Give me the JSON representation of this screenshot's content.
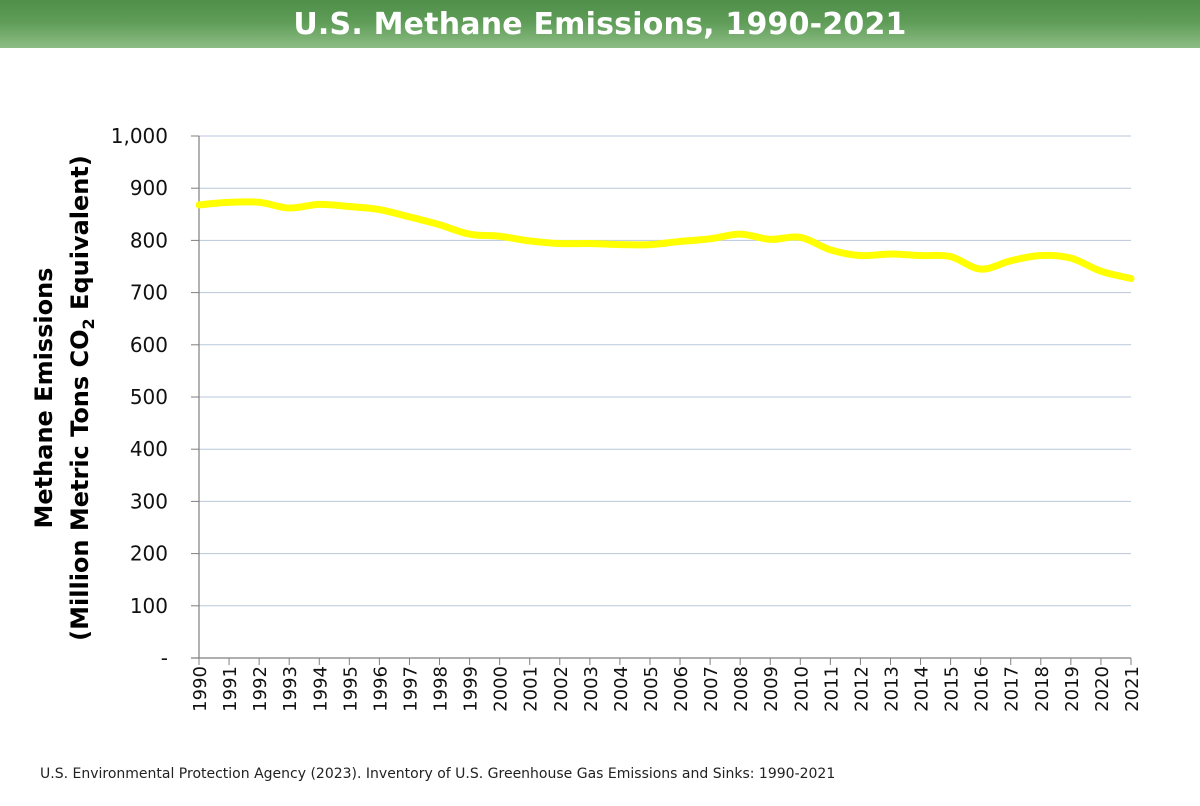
{
  "title": "U.S. Methane Emissions, 1990-2021",
  "source": "U.S. Environmental Protection Agency (2023). Inventory of U.S. Greenhouse Gas Emissions and Sinks: 1990-2021",
  "chart_data": {
    "type": "line",
    "title": "U.S. Methane Emissions, 1990-2021",
    "ylabel_line1": "Methane Emissions",
    "ylabel_line2_pre": "(Million Metric Tons CO",
    "ylabel_line2_sub": "2",
    "ylabel_line2_post": " Equivalent)",
    "xlabel": "",
    "ylim": [
      0,
      1000
    ],
    "yticks": [
      "-",
      "100",
      "200",
      "300",
      "400",
      "500",
      "600",
      "700",
      "800",
      "900",
      "1,000"
    ],
    "grid": true,
    "x": [
      "1990",
      "1991",
      "1992",
      "1993",
      "1994",
      "1995",
      "1996",
      "1997",
      "1998",
      "1999",
      "2000",
      "2001",
      "2002",
      "2003",
      "2004",
      "2005",
      "2006",
      "2007",
      "2008",
      "2009",
      "2010",
      "2011",
      "2012",
      "2013",
      "2014",
      "2015",
      "2016",
      "2017",
      "2018",
      "2019",
      "2020",
      "2021"
    ],
    "series": [
      {
        "values": [
          868,
          873,
          873,
          862,
          869,
          865,
          859,
          845,
          830,
          812,
          808,
          799,
          794,
          794,
          792,
          792,
          798,
          803,
          812,
          802,
          806,
          782,
          771,
          774,
          771,
          769,
          745,
          761,
          771,
          766,
          741,
          727
        ],
        "color": "#ffff00"
      }
    ],
    "colors": {
      "grid": "#b9c7dc",
      "axis": "#7f7f7f",
      "line": "#ffff00",
      "header": "#5e9c57"
    }
  }
}
